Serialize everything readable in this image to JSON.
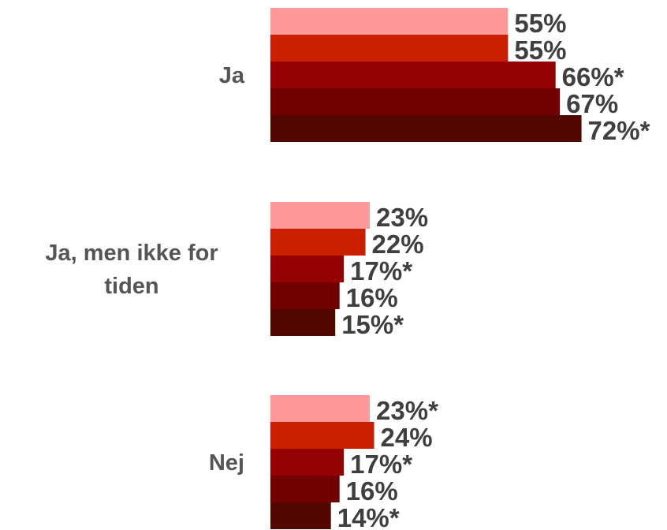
{
  "chart_data": {
    "type": "bar",
    "orientation": "horizontal",
    "categories": [
      [
        "Ja"
      ],
      [
        "Ja, men ikke for",
        "tiden"
      ],
      [
        "Nej"
      ]
    ],
    "series": [
      {
        "color": "#ff9999",
        "values": [
          55,
          23,
          23
        ],
        "labels": [
          "55%",
          "23%",
          "23%*"
        ]
      },
      {
        "color": "#cc1f00",
        "values": [
          55,
          22,
          24
        ],
        "labels": [
          "55%",
          "22%",
          "24%"
        ]
      },
      {
        "color": "#950000",
        "values": [
          66,
          17,
          17
        ],
        "labels": [
          "66%*",
          "17%*",
          "17%*"
        ]
      },
      {
        "color": "#720000",
        "values": [
          67,
          16,
          16
        ],
        "labels": [
          "67%",
          "16%",
          "16%"
        ]
      },
      {
        "color": "#520800",
        "values": [
          72,
          15,
          14
        ],
        "labels": [
          "72%*",
          "15%*",
          "14%*"
        ]
      }
    ],
    "xlim": [
      0,
      100
    ],
    "grid": false,
    "legend": "none"
  }
}
